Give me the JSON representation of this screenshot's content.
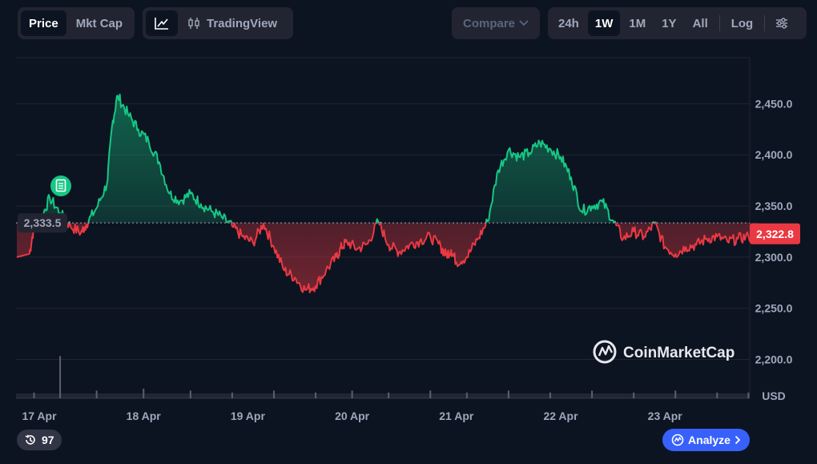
{
  "toolbar": {
    "type_tabs": [
      "Price",
      "Mkt Cap"
    ],
    "type_active": "Price",
    "tradingview_label": "TradingView",
    "compare_label": "Compare",
    "ranges": [
      "24h",
      "1W",
      "1M",
      "1Y",
      "All"
    ],
    "range_active": "1W",
    "log_label": "Log"
  },
  "chart_data": {
    "type": "line",
    "x_ticks": [
      "17 Apr",
      "18 Apr",
      "19 Apr",
      "20 Apr",
      "21 Apr",
      "22 Apr",
      "23 Apr"
    ],
    "y_ticks": [
      "2,450.0",
      "2,400.0",
      "2,350.0",
      "2,300.0",
      "2,250.0",
      "2,200.0"
    ],
    "y_unit": "USD",
    "ylim": [
      2162,
      2495
    ],
    "reference_price": 2333.5,
    "reference_label": "2,333.5",
    "current_price": 2322.8,
    "current_label": "2,322.8",
    "up_color": "#16c784",
    "down_color": "#ea3943",
    "series": [
      {
        "x": [
          0,
          0.05,
          0.12,
          0.2,
          0.3,
          0.4,
          0.5,
          0.55,
          0.65,
          0.75,
          0.8,
          0.85,
          0.95,
          1.05,
          1.15,
          1.25,
          1.35,
          1.45,
          1.55,
          1.65,
          1.75,
          1.85,
          1.95,
          2.05,
          2.15,
          2.25,
          2.35,
          2.45,
          2.55,
          2.65,
          2.75,
          2.85,
          2.95,
          3.0,
          3.05,
          3.15,
          3.25,
          3.35,
          3.45,
          3.55,
          3.65,
          3.75,
          3.85,
          3.95,
          4.0,
          4.05,
          4.1,
          4.2,
          4.3,
          4.4,
          4.5,
          4.6,
          4.7,
          4.8,
          4.9,
          5.0,
          5.1,
          5.2,
          5.3,
          5.4,
          5.5,
          5.6,
          5.7,
          5.8,
          5.9,
          6.0,
          6.1,
          6.2,
          6.3,
          6.4,
          6.5,
          6.6,
          6.7,
          6.8,
          6.9,
          7.0
        ],
        "y": [
          2300,
          2330,
          2338,
          2358,
          2343,
          2330,
          2324,
          2332,
          2348,
          2372,
          2430,
          2458,
          2440,
          2425,
          2413,
          2393,
          2362,
          2355,
          2362,
          2352,
          2345,
          2339,
          2330,
          2320,
          2314,
          2333,
          2310,
          2287,
          2280,
          2268,
          2272,
          2287,
          2300,
          2310,
          2315,
          2308,
          2313,
          2335,
          2312,
          2305,
          2312,
          2316,
          2320,
          2310,
          2302,
          2307,
          2295,
          2300,
          2317,
          2335,
          2385,
          2405,
          2398,
          2402,
          2412,
          2406,
          2398,
          2378,
          2345,
          2350,
          2354,
          2336,
          2318,
          2325,
          2320,
          2333,
          2310,
          2303,
          2310,
          2312,
          2318,
          2320,
          2315,
          2318,
          2320,
          2323
        ]
      }
    ],
    "volume": {
      "x": [
        0.05,
        0.3,
        0.65,
        1.1,
        1.55,
        1.95,
        2.35,
        2.75,
        3.1,
        3.45,
        3.85,
        4.2,
        4.6,
        5.0,
        5.4,
        5.8,
        6.2,
        6.6,
        6.9
      ],
      "values": [
        3,
        22,
        4,
        5,
        4,
        3,
        4,
        3,
        4,
        3,
        4,
        3,
        4,
        3,
        4,
        3,
        4,
        3,
        3
      ]
    },
    "watermark": "CoinMarketCap"
  },
  "badges": {
    "history_count": "97",
    "analyze_label": "Analyze"
  },
  "icons": [
    "line-chart-icon",
    "candlestick-icon",
    "chevron-down-icon",
    "settings-sliders-icon",
    "news-document-icon",
    "history-icon",
    "coinmarketcap-logo-icon",
    "chevron-right-icon"
  ]
}
